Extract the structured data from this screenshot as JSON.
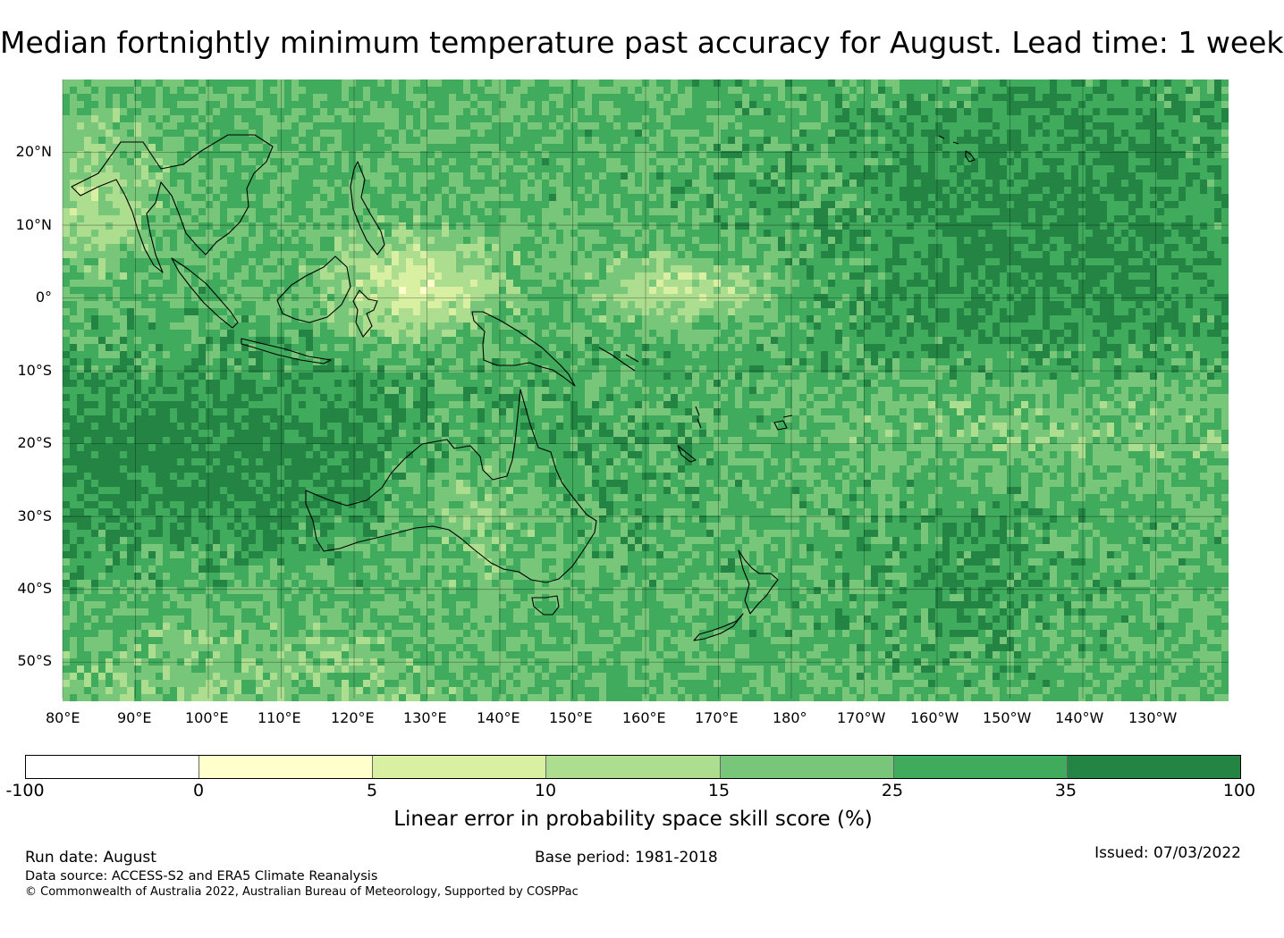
{
  "title": "Median fortnightly minimum temperature past accuracy for August. Lead time: 1 week",
  "map": {
    "lat_labels": [
      "20°N",
      "10°N",
      "0°",
      "10°S",
      "20°S",
      "30°S",
      "40°S",
      "50°S"
    ],
    "lat_values": [
      20,
      10,
      0,
      -10,
      -20,
      -30,
      -40,
      -50
    ],
    "lon_labels": [
      "80°E",
      "90°E",
      "100°E",
      "110°E",
      "120°E",
      "130°E",
      "140°E",
      "150°E",
      "160°E",
      "170°E",
      "180°",
      "170°W",
      "160°W",
      "150°W",
      "140°W",
      "130°W"
    ],
    "lon_values": [
      80,
      90,
      100,
      110,
      120,
      130,
      140,
      150,
      160,
      170,
      180,
      190,
      200,
      210,
      220,
      230
    ],
    "extent": {
      "lon_min": 80,
      "lon_max": 240,
      "lat_min": -55,
      "lat_max": 30
    },
    "gridlines": true
  },
  "colorbar": {
    "boundaries": [
      "-100",
      "0",
      "5",
      "10",
      "15",
      "25",
      "35",
      "100"
    ],
    "colors": [
      "#ffffff",
      "#ffffcc",
      "#d9f0a3",
      "#addd8e",
      "#78c679",
      "#41ab5d",
      "#238443"
    ],
    "label": "Linear error in probability space skill score (%)"
  },
  "footer": {
    "run_date": "Run date: August",
    "base_period": "Base period: 1981-2018",
    "issued": "Issued: 07/03/2022",
    "data_source": "Data source: ACCESS-S2 and ERA5 Climate Reanalysis",
    "copyright": "© Commonwealth of Australia 2022, Australian Bureau of Meteorology, Supported by COSPPac"
  }
}
